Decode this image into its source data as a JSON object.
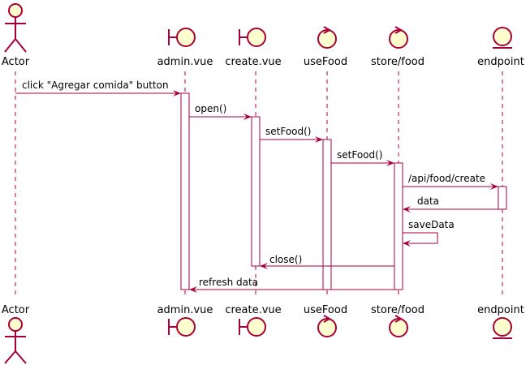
{
  "colors": {
    "stroke": "#A80036",
    "fill": "#FEFECE",
    "lifeline": "#A80036",
    "text": "#000000"
  },
  "participants": [
    {
      "id": "actor",
      "label": "Actor",
      "kind": "actor",
      "icon": "actor-icon"
    },
    {
      "id": "admin",
      "label": "admin.vue",
      "kind": "boundary",
      "icon": "boundary-icon"
    },
    {
      "id": "create",
      "label": "create.vue",
      "kind": "boundary",
      "icon": "boundary-icon"
    },
    {
      "id": "usefood",
      "label": "useFood",
      "kind": "control",
      "icon": "control-icon"
    },
    {
      "id": "store",
      "label": "store/food",
      "kind": "control",
      "icon": "control-icon"
    },
    {
      "id": "endpoint",
      "label": "endpoint",
      "kind": "entity",
      "icon": "entity-icon"
    }
  ],
  "messages": [
    {
      "from": "actor",
      "to": "admin",
      "label": "click \"Agregar comida\" button",
      "dashed": false
    },
    {
      "from": "admin",
      "to": "create",
      "label": "open()",
      "dashed": false
    },
    {
      "from": "create",
      "to": "usefood",
      "label": "setFood()",
      "dashed": false
    },
    {
      "from": "usefood",
      "to": "store",
      "label": "setFood()",
      "dashed": false
    },
    {
      "from": "store",
      "to": "endpoint",
      "label": "/api/food/create",
      "dashed": false
    },
    {
      "from": "endpoint",
      "to": "store",
      "label": "data",
      "dashed": false
    },
    {
      "from": "store",
      "to": "store",
      "label": "saveData",
      "dashed": false
    },
    {
      "from": "store",
      "to": "create",
      "label": "close()",
      "dashed": false
    },
    {
      "from": "store",
      "to": "admin",
      "label": "refresh data",
      "dashed": false
    }
  ]
}
